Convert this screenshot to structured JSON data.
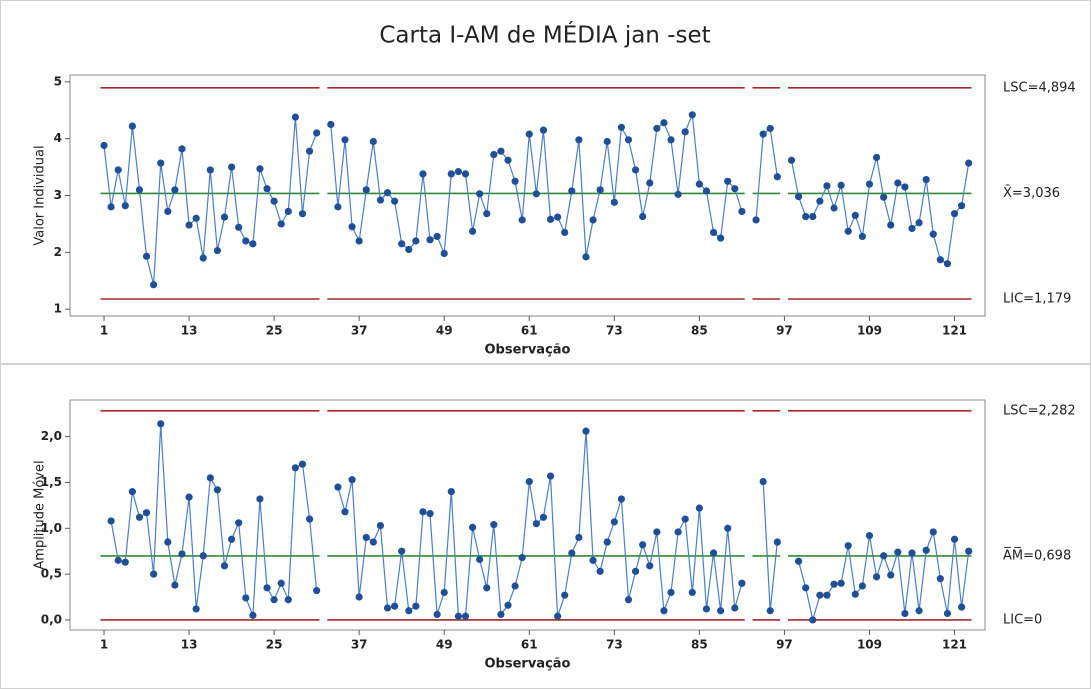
{
  "chart_data": [
    {
      "type": "line",
      "title": "Carta I-AM de MÉDIA jan -set",
      "xlabel": "Observação",
      "ylabel": "Valor Individual",
      "x": [
        1,
        2,
        3,
        4,
        5,
        6,
        7,
        8,
        9,
        10,
        11,
        12,
        13,
        14,
        15,
        16,
        17,
        18,
        19,
        20,
        21,
        22,
        23,
        24,
        25,
        26,
        27,
        28,
        29,
        30,
        31,
        32,
        33,
        34,
        35,
        36,
        37,
        38,
        39,
        40,
        41,
        42,
        43,
        44,
        45,
        46,
        47,
        48,
        49,
        50,
        51,
        52,
        53,
        54,
        55,
        56,
        57,
        58,
        59,
        60,
        61,
        62,
        63,
        64,
        65,
        66,
        67,
        68,
        69,
        70,
        71,
        72,
        73,
        74,
        75,
        76,
        77,
        78,
        79,
        80,
        81,
        82,
        83,
        84,
        85,
        86,
        87,
        88,
        89,
        90,
        91,
        92,
        93,
        94,
        95,
        96,
        97,
        98,
        99,
        100,
        101,
        102,
        103,
        104,
        105,
        106,
        107,
        108,
        109,
        110,
        111,
        112,
        113,
        114,
        115,
        116,
        117,
        118,
        119,
        120,
        121,
        122,
        123
      ],
      "values": [
        3.88,
        2.8,
        3.45,
        2.82,
        4.22,
        3.1,
        1.93,
        1.43,
        3.57,
        2.72,
        3.1,
        3.82,
        2.48,
        2.6,
        1.9,
        3.45,
        2.03,
        2.62,
        3.5,
        2.44,
        2.2,
        2.15,
        3.47,
        3.12,
        2.9,
        2.5,
        2.72,
        4.38,
        2.68,
        3.78,
        4.1,
        null,
        4.25,
        2.8,
        3.98,
        2.45,
        2.2,
        3.1,
        3.95,
        2.92,
        3.05,
        2.9,
        2.15,
        2.05,
        2.2,
        3.38,
        2.22,
        2.28,
        1.98,
        3.38,
        3.42,
        3.38,
        2.37,
        3.03,
        2.68,
        3.72,
        3.78,
        3.62,
        3.25,
        2.57,
        4.08,
        3.03,
        4.15,
        2.58,
        2.62,
        2.35,
        3.08,
        3.98,
        1.92,
        2.57,
        3.1,
        3.95,
        2.88,
        4.2,
        3.98,
        3.45,
        2.63,
        3.22,
        4.18,
        4.28,
        3.98,
        3.02,
        4.12,
        4.42,
        3.2,
        3.08,
        2.35,
        2.25,
        3.25,
        3.12,
        2.72,
        null,
        2.57,
        4.08,
        4.18,
        3.33,
        null,
        3.62,
        2.98,
        2.63,
        2.63,
        2.9,
        3.17,
        2.78,
        3.18,
        2.37,
        2.65,
        2.28,
        3.2,
        3.67,
        2.97,
        2.48,
        3.22,
        3.15,
        2.42,
        2.52,
        3.28,
        2.32,
        1.87,
        1.8,
        2.68,
        2.82,
        3.57
      ],
      "color": "#4a7fc4",
      "marker_color": "#1f4f96",
      "xlim": [
        -3.8,
        125.3
      ],
      "xticks": [
        1,
        13,
        25,
        37,
        49,
        61,
        73,
        85,
        97,
        109,
        121
      ],
      "ylim": [
        0.88,
        5.12
      ],
      "yticks": [
        1,
        2,
        3,
        4,
        5
      ],
      "limits": [
        {
          "value": 4.894,
          "label": "LSC=4,894",
          "color": "#a3282d"
        },
        {
          "value": 3.036,
          "label": "X̄=3,036",
          "color": "#2e8b34"
        },
        {
          "value": 1.179,
          "label": "LIC=1,179",
          "color": "#a3282d"
        }
      ]
    },
    {
      "type": "line",
      "xlabel": "Observação",
      "ylabel": "Amplitude Móvel",
      "x": [
        1,
        2,
        3,
        4,
        5,
        6,
        7,
        8,
        9,
        10,
        11,
        12,
        13,
        14,
        15,
        16,
        17,
        18,
        19,
        20,
        21,
        22,
        23,
        24,
        25,
        26,
        27,
        28,
        29,
        30,
        31,
        32,
        33,
        34,
        35,
        36,
        37,
        38,
        39,
        40,
        41,
        42,
        43,
        44,
        45,
        46,
        47,
        48,
        49,
        50,
        51,
        52,
        53,
        54,
        55,
        56,
        57,
        58,
        59,
        60,
        61,
        62,
        63,
        64,
        65,
        66,
        67,
        68,
        69,
        70,
        71,
        72,
        73,
        74,
        75,
        76,
        77,
        78,
        79,
        80,
        81,
        82,
        83,
        84,
        85,
        86,
        87,
        88,
        89,
        90,
        91,
        92,
        93,
        94,
        95,
        96,
        97,
        98,
        99,
        100,
        101,
        102,
        103,
        104,
        105,
        106,
        107,
        108,
        109,
        110,
        111,
        112,
        113,
        114,
        115,
        116,
        117,
        118,
        119,
        120,
        121,
        122,
        123
      ],
      "values": [
        null,
        1.08,
        0.65,
        0.63,
        1.4,
        1.12,
        1.17,
        0.5,
        2.14,
        0.85,
        0.38,
        0.72,
        1.34,
        0.12,
        0.7,
        1.55,
        1.42,
        0.59,
        0.88,
        1.06,
        0.24,
        0.05,
        1.32,
        0.35,
        0.22,
        0.4,
        0.22,
        1.66,
        1.7,
        1.1,
        0.32,
        null,
        null,
        1.45,
        1.18,
        1.53,
        0.25,
        0.9,
        0.85,
        1.03,
        0.13,
        0.15,
        0.75,
        0.1,
        0.15,
        1.18,
        1.16,
        0.06,
        0.3,
        1.4,
        0.04,
        0.04,
        1.01,
        0.66,
        0.35,
        1.04,
        0.06,
        0.16,
        0.37,
        0.68,
        1.51,
        1.05,
        1.12,
        1.57,
        0.04,
        0.27,
        0.73,
        0.9,
        2.06,
        0.65,
        0.53,
        0.85,
        1.07,
        1.32,
        0.22,
        0.53,
        0.82,
        0.59,
        0.96,
        0.1,
        0.3,
        0.96,
        1.1,
        0.3,
        1.22,
        0.12,
        0.73,
        0.1,
        1.0,
        0.13,
        0.4,
        null,
        null,
        1.51,
        0.1,
        0.85,
        null,
        null,
        0.64,
        0.35,
        0.0,
        0.27,
        0.27,
        0.39,
        0.4,
        0.81,
        0.28,
        0.37,
        0.92,
        0.47,
        0.7,
        0.49,
        0.74,
        0.07,
        0.73,
        0.1,
        0.76,
        0.96,
        0.45,
        0.07,
        0.88,
        0.14,
        0.75
      ],
      "color": "#4a7fc4",
      "marker_color": "#1f4f96",
      "xlim": [
        -3.8,
        125.3
      ],
      "xticks": [
        1,
        13,
        25,
        37,
        49,
        61,
        73,
        85,
        97,
        109,
        121
      ],
      "ylim": [
        -0.11,
        2.4
      ],
      "yticks": [
        {
          "value": 0,
          "label": "0,0"
        },
        {
          "value": 0.5,
          "label": "0,5"
        },
        {
          "value": 1,
          "label": "1,0"
        },
        {
          "value": 1.5,
          "label": "1,5"
        },
        {
          "value": 2,
          "label": "2,0"
        }
      ],
      "limits": [
        {
          "value": 2.282,
          "label": "LSC=2,282",
          "color": "#a3282d"
        },
        {
          "value": 0.698,
          "label": "A̅M̅=0,698",
          "color": "#2e8b34"
        },
        {
          "value": 0,
          "label": "LIC=0",
          "color": "#a3282d"
        }
      ]
    }
  ]
}
